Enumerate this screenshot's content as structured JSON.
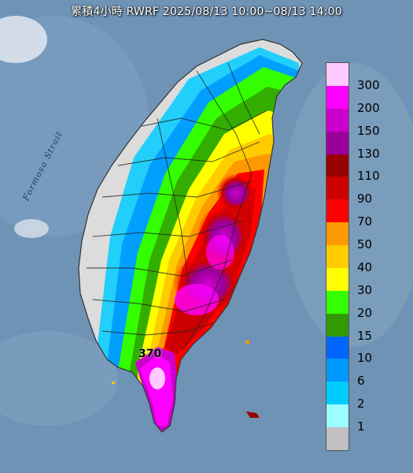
{
  "title": "累積4小時 RWRF 2025/08/13 10:00~08/13 14:00",
  "strait_label": "Formosa Strait",
  "max_value_label": "370",
  "legend": {
    "levels": [
      {
        "label": "300",
        "color": "#ffc8ff"
      },
      {
        "label": "200",
        "color": "#ff00ff"
      },
      {
        "label": "150",
        "color": "#cc00cc"
      },
      {
        "label": "130",
        "color": "#990099"
      },
      {
        "label": "110",
        "color": "#990000"
      },
      {
        "label": "90",
        "color": "#cc0000"
      },
      {
        "label": "70",
        "color": "#ff0000"
      },
      {
        "label": "50",
        "color": "#ff9900"
      },
      {
        "label": "40",
        "color": "#ffcc00"
      },
      {
        "label": "30",
        "color": "#ffff00"
      },
      {
        "label": "20",
        "color": "#33ff00"
      },
      {
        "label": "15",
        "color": "#339900"
      },
      {
        "label": "10",
        "color": "#0066ff"
      },
      {
        "label": "6",
        "color": "#0099ff"
      },
      {
        "label": "2",
        "color": "#00ccff"
      },
      {
        "label": "1",
        "color": "#99ffff"
      },
      {
        "label": "",
        "color": "#c0c0c0"
      }
    ]
  },
  "colors": {
    "ocean": "#6f93b5",
    "land_dry": "#dcdcdc",
    "river": "#222222"
  }
}
